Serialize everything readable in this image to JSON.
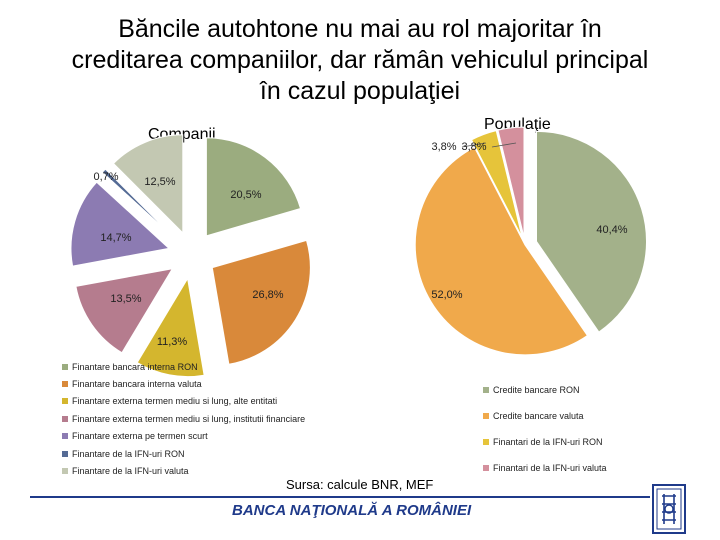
{
  "title_lines": [
    "Băncile autohtone nu mai au rol majoritar în",
    "creditarea companiilor, dar rămân vehiculul principal",
    "în cazul populaţiei"
  ],
  "source": "Sursa: calcule BNR, MEF",
  "bank_name": "BANCA NAŢIONALĂ A ROMÂNIEI",
  "colors": {
    "footer": "#1f3a8a"
  },
  "icons": {
    "logo": "bnr-logo-icon"
  },
  "chart_data": [
    {
      "type": "pie",
      "title": "Companii",
      "labels": [
        "Finantare bancara interna RON",
        "Finantare bancara interna valuta",
        "Finantare externa termen mediu si lung, alte entitati",
        "Finantare externa termen mediu si lung, institutii financiare",
        "Finantare externa pe termen scurt",
        "Finantare de la IFN-uri RON",
        "Finantare de la IFN-uri valuta"
      ],
      "values": [
        20.5,
        26.8,
        11.3,
        13.5,
        14.7,
        0.7,
        12.5
      ],
      "value_labels": [
        "20,5%",
        "26,8%",
        "11,3%",
        "13,5%",
        "14,7%",
        "0,7%",
        "12,5%"
      ],
      "colors": [
        "#9bac7f",
        "#d9893a",
        "#d4b62e",
        "#b57c8e",
        "#8c7bb2",
        "#556b95",
        "#c3c8b2"
      ],
      "legend": "bottom-left"
    },
    {
      "type": "pie",
      "title": "Populaţie",
      "labels": [
        "Credite bancare RON",
        "Credite bancare valuta",
        "Finantari de la IFN-uri RON",
        "Finantari de la IFN-uri valuta"
      ],
      "values": [
        40.4,
        52.0,
        3.8,
        3.8
      ],
      "value_labels": [
        "40,4%",
        "52,0%",
        "3,8%",
        "3,8%"
      ],
      "colors": [
        "#a3b18a",
        "#f0a94b",
        "#e6c43a",
        "#d4909d"
      ],
      "legend": "bottom-right"
    }
  ]
}
